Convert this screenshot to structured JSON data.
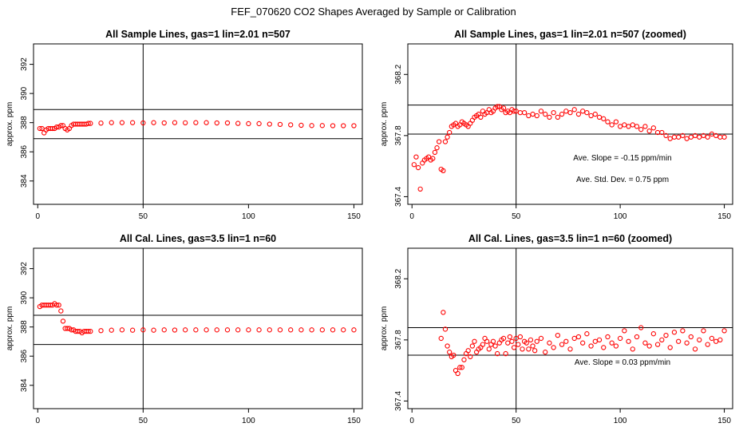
{
  "title": "FEF_070620  CO2 Shapes Averaged by Sample or Calibration",
  "colors": {
    "points": "#ff0000",
    "lines": "#000000"
  },
  "chart_data": [
    {
      "type": "scatter",
      "title": "All Sample Lines, gas=1 lin=2.01 n=507",
      "ylabel": "approx. ppm",
      "xlim": [
        -2,
        154
      ],
      "ylim": [
        382.4,
        393.4
      ],
      "xticks": [
        "0",
        "50",
        "100",
        "150"
      ],
      "yticks": [
        "384",
        "386",
        "388",
        "390",
        "392"
      ],
      "hlines": [
        388.9,
        386.9
      ],
      "vline": 50,
      "annotations": [],
      "series": [
        {
          "x": [
            1,
            2,
            3,
            4,
            5,
            6,
            7,
            8,
            9,
            10,
            11,
            12,
            13,
            14,
            15,
            16,
            17,
            18,
            19,
            20,
            21,
            22,
            23,
            24,
            25,
            30,
            35,
            40,
            45,
            50,
            55,
            60,
            65,
            70,
            75,
            80,
            85,
            90,
            95,
            100,
            105,
            110,
            115,
            120,
            125,
            130,
            135,
            140,
            145,
            150
          ],
          "y": [
            387.6,
            387.6,
            387.3,
            387.5,
            387.6,
            387.6,
            387.6,
            387.6,
            387.7,
            387.7,
            387.8,
            387.8,
            387.6,
            387.5,
            387.6,
            387.8,
            387.9,
            387.9,
            387.9,
            387.9,
            387.9,
            387.9,
            387.9,
            387.95,
            387.95,
            387.97,
            388.0,
            388.0,
            388.0,
            387.98,
            388.0,
            387.98,
            388.0,
            387.99,
            388.0,
            388.0,
            387.98,
            387.98,
            387.95,
            387.93,
            387.93,
            387.9,
            387.88,
            387.85,
            387.82,
            387.8,
            387.8,
            387.79,
            387.79,
            387.79
          ]
        }
      ]
    },
    {
      "type": "scatter",
      "title": "All Sample Lines, gas=1 lin=2.01 n=507 (zoomed)",
      "ylabel": "approx. ppm",
      "xlim": [
        -2,
        154
      ],
      "ylim": [
        367.35,
        368.4
      ],
      "xticks": [
        "0",
        "50",
        "100",
        "150"
      ],
      "yticks": [
        "367.4",
        "367.8",
        "368.2"
      ],
      "hlines": [
        368.0,
        367.81
      ],
      "vline": 50,
      "annotations": [
        "Ave. Slope =  -0.15  ppm/min",
        "Ave. Std. Dev. =  0.75  ppm"
      ],
      "series": [
        {
          "x": [
            1,
            2,
            3,
            4,
            5,
            6,
            7,
            8,
            9,
            10,
            11,
            12,
            13,
            14,
            15,
            16,
            17,
            18,
            19,
            20,
            21,
            22,
            23,
            24,
            25,
            26,
            27,
            28,
            29,
            30,
            31,
            32,
            33,
            34,
            35,
            36,
            37,
            38,
            39,
            40,
            41,
            42,
            43,
            44,
            45,
            46,
            47,
            48,
            49,
            50,
            52,
            54,
            56,
            58,
            60,
            62,
            64,
            66,
            68,
            70,
            72,
            74,
            76,
            78,
            80,
            82,
            84,
            86,
            88,
            90,
            92,
            94,
            96,
            98,
            100,
            102,
            104,
            106,
            108,
            110,
            112,
            114,
            116,
            118,
            120,
            122,
            124,
            126,
            128,
            130,
            132,
            134,
            136,
            138,
            140,
            142,
            144,
            146,
            148,
            150
          ],
          "y": [
            367.61,
            367.66,
            367.59,
            367.45,
            367.62,
            367.64,
            367.65,
            367.66,
            367.64,
            367.65,
            367.69,
            367.72,
            367.76,
            367.58,
            367.57,
            367.76,
            367.79,
            367.82,
            367.86,
            367.87,
            367.88,
            367.86,
            367.87,
            367.89,
            367.88,
            367.87,
            367.86,
            367.88,
            367.9,
            367.92,
            367.93,
            367.94,
            367.92,
            367.96,
            367.94,
            367.95,
            367.97,
            367.95,
            367.96,
            367.98,
            367.99,
            367.99,
            367.97,
            367.98,
            367.95,
            367.96,
            367.95,
            367.97,
            367.96,
            367.96,
            367.95,
            367.95,
            367.93,
            367.94,
            367.93,
            367.96,
            367.94,
            367.92,
            367.95,
            367.92,
            367.94,
            367.96,
            367.95,
            367.97,
            367.94,
            367.96,
            367.95,
            367.93,
            367.94,
            367.92,
            367.91,
            367.89,
            367.87,
            367.89,
            367.86,
            367.87,
            367.86,
            367.87,
            367.86,
            367.84,
            367.86,
            367.83,
            367.85,
            367.82,
            367.82,
            367.8,
            367.78,
            367.79,
            367.79,
            367.8,
            367.78,
            367.79,
            367.8,
            367.79,
            367.8,
            367.79,
            367.81,
            367.8,
            367.79,
            367.79
          ]
        }
      ]
    },
    {
      "type": "scatter",
      "title": "All Cal. Lines, gas=3.5 lin=1 n=60",
      "ylabel": "approx. ppm",
      "xlim": [
        -2,
        154
      ],
      "ylim": [
        382.4,
        393.4
      ],
      "xticks": [
        "0",
        "50",
        "100",
        "150"
      ],
      "yticks": [
        "384",
        "386",
        "388",
        "390",
        "392"
      ],
      "hlines": [
        388.8,
        386.8
      ],
      "vline": 50,
      "annotations": [],
      "series": [
        {
          "x": [
            1,
            2,
            3,
            4,
            5,
            6,
            7,
            8,
            9,
            10,
            11,
            12,
            13,
            14,
            15,
            16,
            17,
            18,
            19,
            20,
            21,
            22,
            23,
            24,
            25,
            30,
            35,
            40,
            45,
            50,
            55,
            60,
            65,
            70,
            75,
            80,
            85,
            90,
            95,
            100,
            105,
            110,
            115,
            120,
            125,
            130,
            135,
            140,
            145,
            150
          ],
          "y": [
            389.4,
            389.5,
            389.5,
            389.5,
            389.5,
            389.5,
            389.5,
            389.6,
            389.5,
            389.5,
            389.1,
            388.4,
            387.9,
            387.9,
            387.9,
            387.8,
            387.8,
            387.7,
            387.7,
            387.7,
            387.6,
            387.7,
            387.7,
            387.7,
            387.7,
            387.75,
            387.78,
            387.8,
            387.78,
            387.8,
            387.78,
            387.8,
            387.79,
            387.8,
            387.8,
            387.8,
            387.8,
            387.8,
            387.8,
            387.8,
            387.8,
            387.8,
            387.8,
            387.8,
            387.8,
            387.8,
            387.8,
            387.8,
            387.8,
            387.8
          ]
        }
      ]
    },
    {
      "type": "scatter",
      "title": "All Cal. Lines, gas=3.5 lin=1 n=60 (zoomed)",
      "ylabel": "approx. ppm",
      "xlim": [
        -2,
        154
      ],
      "ylim": [
        367.35,
        368.4
      ],
      "xticks": [
        "0",
        "50",
        "100",
        "150"
      ],
      "yticks": [
        "367.4",
        "367.8",
        "368.2"
      ],
      "hlines": [
        367.88,
        367.7
      ],
      "vline": 50,
      "annotations": [
        "Ave. Slope =  0.03  ppm/min"
      ],
      "series": [
        {
          "x": [
            14,
            15,
            16,
            17,
            18,
            19,
            20,
            21,
            22,
            23,
            24,
            25,
            26,
            27,
            28,
            29,
            30,
            31,
            32,
            33,
            34,
            35,
            36,
            37,
            38,
            39,
            40,
            41,
            42,
            43,
            44,
            45,
            46,
            47,
            48,
            49,
            50,
            51,
            52,
            53,
            54,
            55,
            56,
            57,
            58,
            59,
            60,
            62,
            64,
            66,
            68,
            70,
            72,
            74,
            76,
            78,
            80,
            82,
            84,
            86,
            88,
            90,
            92,
            94,
            96,
            98,
            100,
            102,
            104,
            106,
            108,
            110,
            112,
            114,
            116,
            118,
            120,
            122,
            124,
            126,
            128,
            130,
            132,
            134,
            136,
            138,
            140,
            142,
            144,
            146,
            148,
            150
          ],
          "y": [
            367.81,
            367.98,
            367.87,
            367.76,
            367.72,
            367.69,
            367.7,
            367.6,
            367.58,
            367.62,
            367.62,
            367.67,
            367.71,
            367.73,
            367.69,
            367.76,
            367.79,
            367.72,
            367.74,
            367.75,
            367.77,
            367.81,
            367.79,
            367.74,
            367.77,
            367.79,
            367.76,
            367.71,
            367.78,
            367.8,
            367.81,
            367.71,
            367.78,
            367.82,
            367.79,
            367.75,
            367.81,
            367.77,
            367.82,
            367.74,
            367.79,
            367.78,
            367.74,
            367.8,
            367.76,
            367.73,
            367.79,
            367.81,
            367.72,
            367.78,
            367.75,
            367.83,
            367.77,
            367.79,
            367.74,
            367.81,
            367.82,
            367.78,
            367.84,
            367.76,
            367.79,
            367.8,
            367.75,
            367.82,
            367.78,
            367.76,
            367.81,
            367.86,
            367.79,
            367.74,
            367.82,
            367.88,
            367.78,
            367.76,
            367.84,
            367.77,
            367.8,
            367.83,
            367.75,
            367.85,
            367.79,
            367.86,
            367.78,
            367.82,
            367.74,
            367.8,
            367.86,
            367.77,
            367.81,
            367.79,
            367.8,
            367.86
          ]
        }
      ]
    }
  ]
}
